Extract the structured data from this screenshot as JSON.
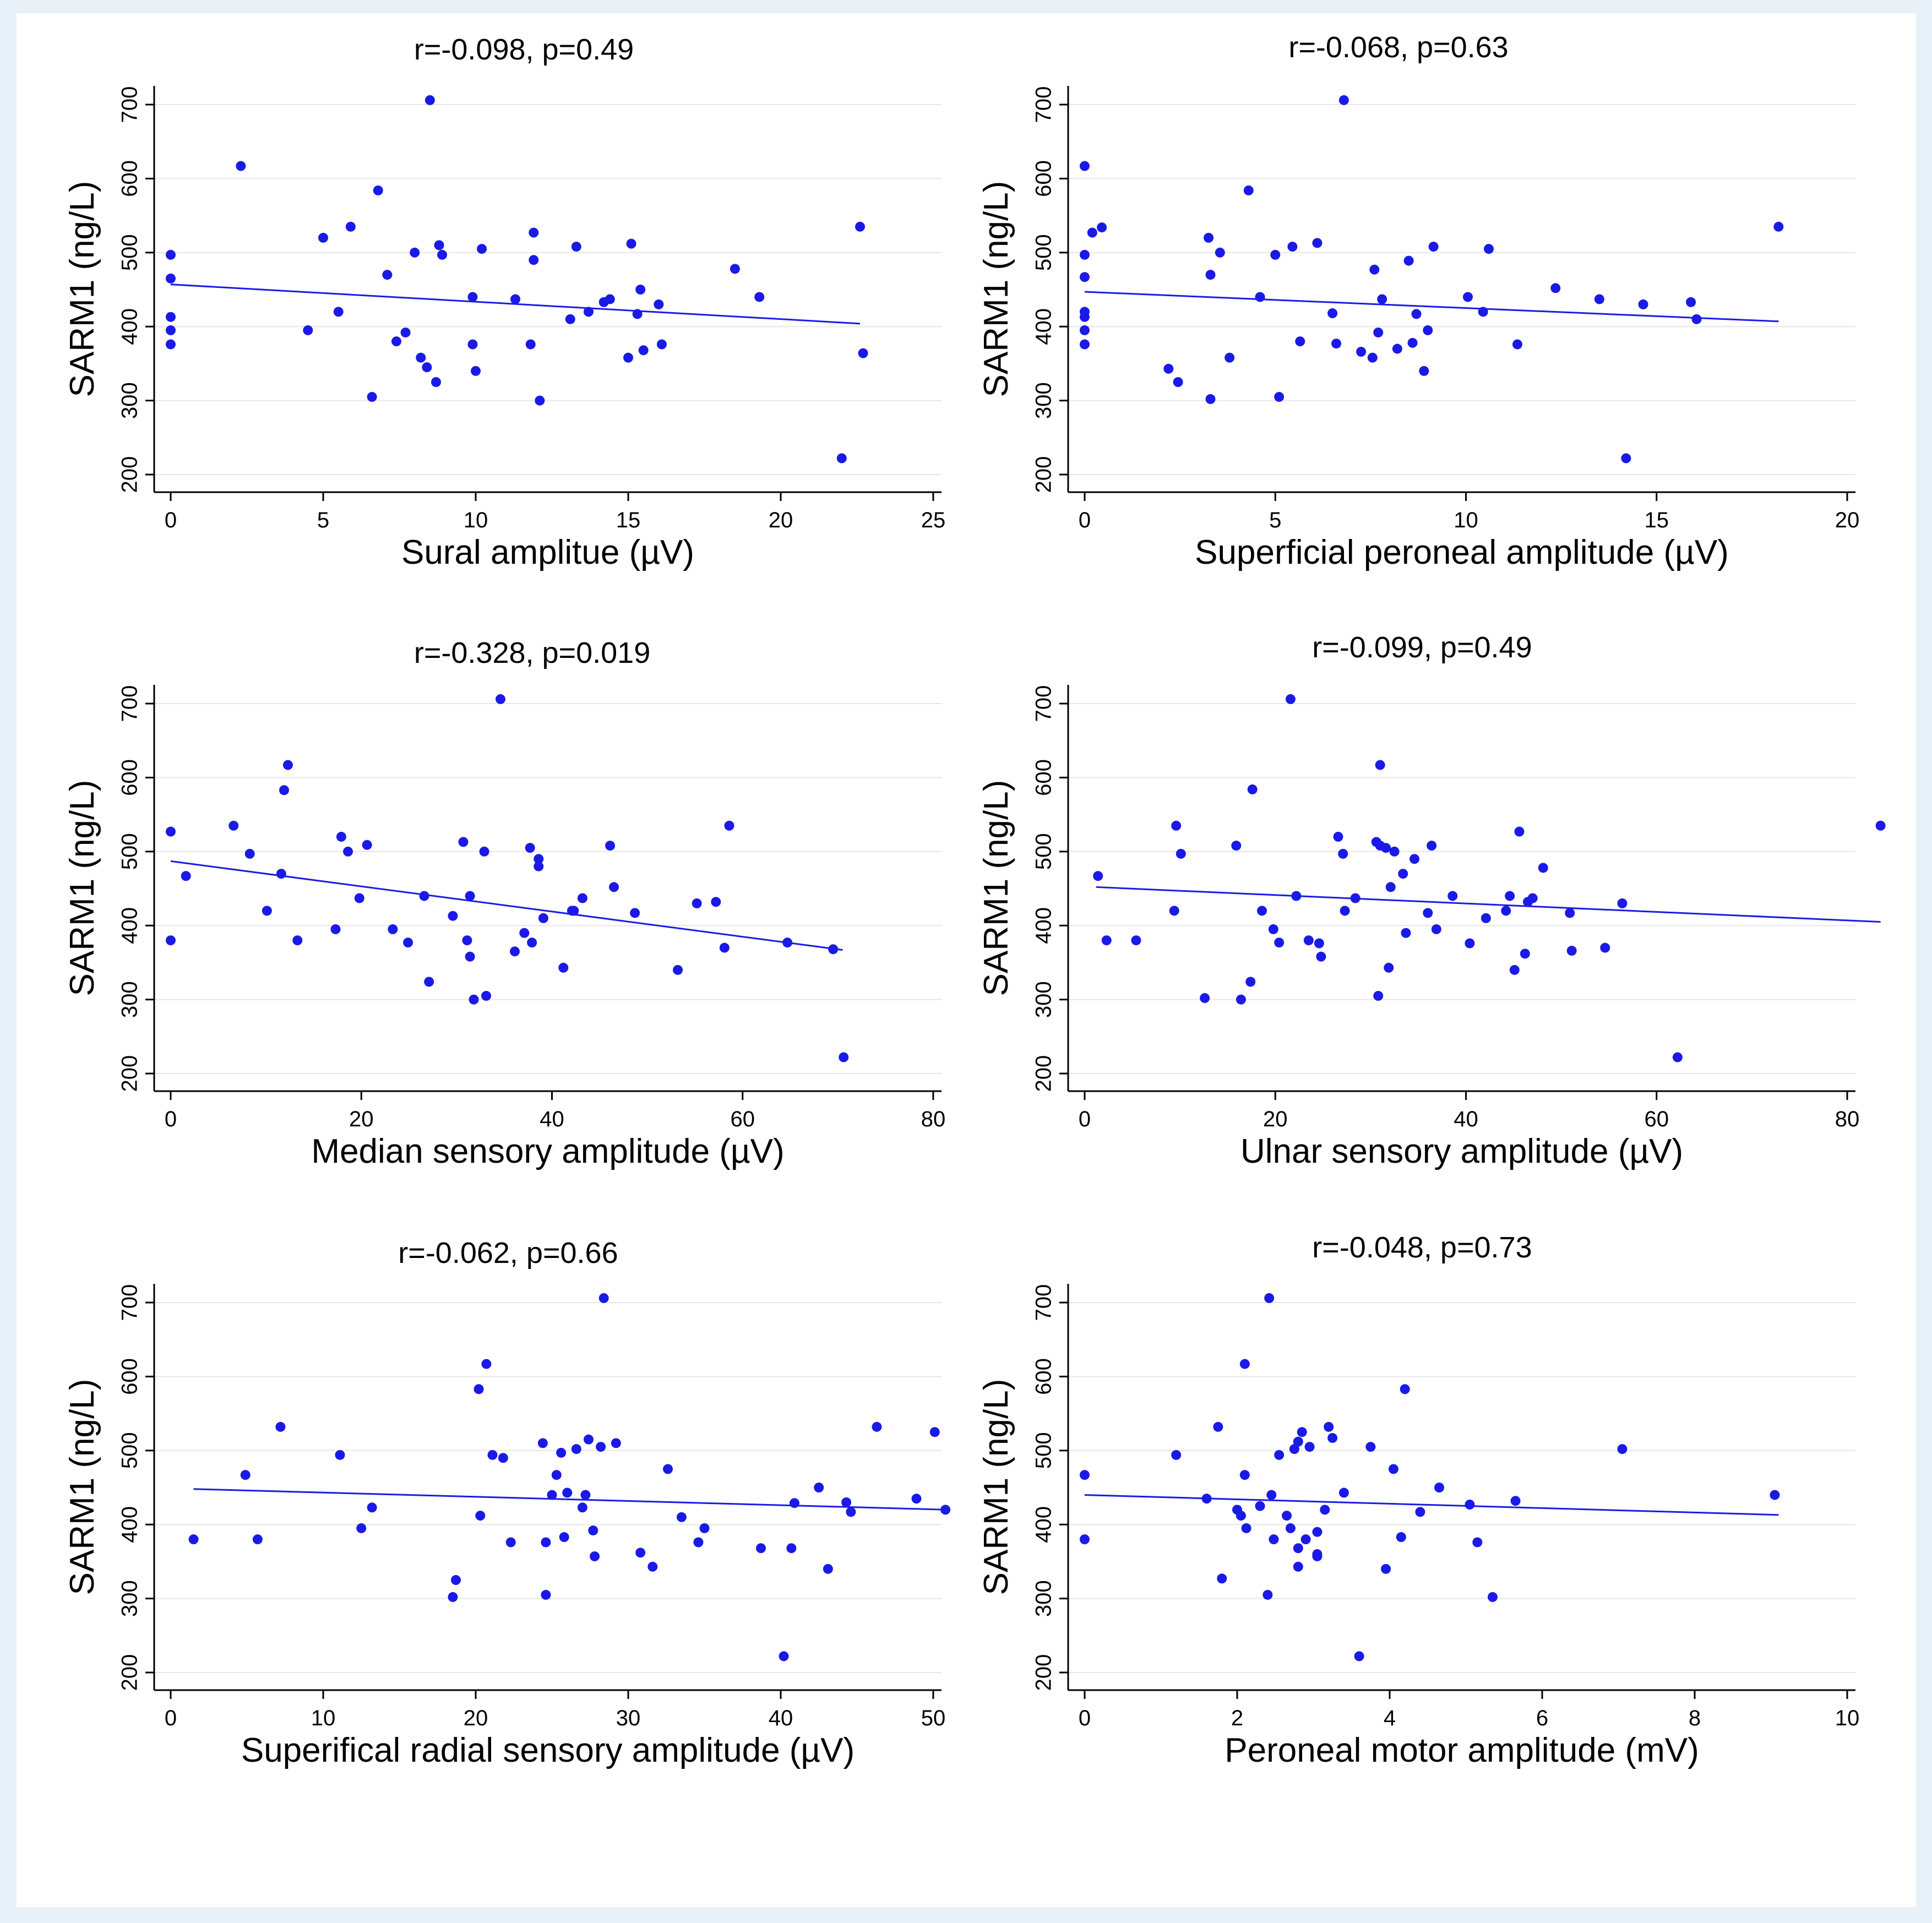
{
  "colors": {
    "point": "#1a1ae6",
    "line": "#1a1ae6",
    "axis": "#000000",
    "grid": "#e6e6e6"
  },
  "chart_data": [
    {
      "type": "scatter",
      "title": "",
      "annotation": "r=-0.098, p=0.49",
      "xlabel": "Sural amplitue (µV)",
      "ylabel": "SARM1 (ng/L)",
      "xlim": [
        0,
        25
      ],
      "ylim": [
        200,
        700
      ],
      "xticks": [
        0,
        5,
        10,
        15,
        20,
        25
      ],
      "yticks": [
        200,
        300,
        400,
        500,
        600,
        700
      ],
      "fit_line": {
        "x": [
          0,
          22.6
        ],
        "y": [
          457,
          404
        ]
      },
      "points": [
        [
          0,
          497
        ],
        [
          0,
          465
        ],
        [
          0,
          413
        ],
        [
          0,
          395
        ],
        [
          0,
          376
        ],
        [
          2.3,
          617
        ],
        [
          4.5,
          395
        ],
        [
          5.0,
          520
        ],
        [
          5.5,
          420
        ],
        [
          5.9,
          535
        ],
        [
          6.6,
          305
        ],
        [
          6.8,
          584
        ],
        [
          7.1,
          470
        ],
        [
          7.4,
          380
        ],
        [
          7.7,
          392
        ],
        [
          8.0,
          500
        ],
        [
          8.2,
          358
        ],
        [
          8.4,
          345
        ],
        [
          8.5,
          706
        ],
        [
          8.7,
          325
        ],
        [
          8.8,
          510
        ],
        [
          8.9,
          497
        ],
        [
          9.9,
          440
        ],
        [
          9.9,
          376
        ],
        [
          10.0,
          340
        ],
        [
          10.2,
          505
        ],
        [
          11.3,
          437
        ],
        [
          11.8,
          376
        ],
        [
          11.9,
          490
        ],
        [
          11.9,
          527
        ],
        [
          12.1,
          300
        ],
        [
          13.1,
          410
        ],
        [
          13.3,
          508
        ],
        [
          13.7,
          420
        ],
        [
          14.2,
          433
        ],
        [
          14.4,
          437
        ],
        [
          15.0,
          358
        ],
        [
          15.1,
          512
        ],
        [
          15.3,
          417
        ],
        [
          15.4,
          450
        ],
        [
          15.5,
          368
        ],
        [
          16.0,
          430
        ],
        [
          16.1,
          376
        ],
        [
          18.5,
          478
        ],
        [
          19.3,
          440
        ],
        [
          22.0,
          222
        ],
        [
          22.6,
          535
        ],
        [
          22.7,
          364
        ]
      ]
    },
    {
      "type": "scatter",
      "title": "",
      "annotation": "r=-0.068, p=0.63",
      "xlabel": "Superficial peroneal amplitude (µV)",
      "ylabel": "SARM1 (ng/L)",
      "xlim": [
        0,
        20
      ],
      "ylim": [
        200,
        700
      ],
      "xticks": [
        0,
        5,
        10,
        15,
        20
      ],
      "yticks": [
        200,
        300,
        400,
        500,
        600,
        700
      ],
      "fit_line": {
        "x": [
          0,
          18.2
        ],
        "y": [
          447,
          407
        ]
      },
      "points": [
        [
          0,
          617
        ],
        [
          0,
          497
        ],
        [
          0,
          467
        ],
        [
          0,
          420
        ],
        [
          0,
          413
        ],
        [
          0,
          395
        ],
        [
          0,
          376
        ],
        [
          0.2,
          527
        ],
        [
          0.45,
          534
        ],
        [
          2.2,
          343
        ],
        [
          2.45,
          325
        ],
        [
          3.25,
          520
        ],
        [
          3.3,
          470
        ],
        [
          3.3,
          302
        ],
        [
          3.55,
          500
        ],
        [
          3.8,
          358
        ],
        [
          4.3,
          584
        ],
        [
          4.6,
          440
        ],
        [
          5.0,
          497
        ],
        [
          5.1,
          305
        ],
        [
          5.45,
          508
        ],
        [
          5.65,
          380
        ],
        [
          6.1,
          513
        ],
        [
          6.5,
          418
        ],
        [
          6.6,
          377
        ],
        [
          6.8,
          706
        ],
        [
          7.25,
          366
        ],
        [
          7.55,
          358
        ],
        [
          7.6,
          477
        ],
        [
          7.7,
          392
        ],
        [
          7.8,
          437
        ],
        [
          8.2,
          370
        ],
        [
          8.5,
          489
        ],
        [
          8.6,
          378
        ],
        [
          8.7,
          417
        ],
        [
          8.9,
          340
        ],
        [
          9.0,
          395
        ],
        [
          9.15,
          508
        ],
        [
          10.05,
          440
        ],
        [
          10.45,
          420
        ],
        [
          10.6,
          505
        ],
        [
          11.35,
          376
        ],
        [
          12.35,
          452
        ],
        [
          13.5,
          437
        ],
        [
          14.2,
          222
        ],
        [
          14.65,
          430
        ],
        [
          15.9,
          433
        ],
        [
          16.05,
          410
        ],
        [
          18.2,
          535
        ]
      ]
    },
    {
      "type": "scatter",
      "title": "",
      "annotation": "r=-0.328, p=0.019",
      "xlabel": "Median sensory amplitude (µV)",
      "ylabel": "SARM1 (ng/L)",
      "xlim": [
        0,
        80
      ],
      "ylim": [
        200,
        700
      ],
      "xticks": [
        0,
        20,
        40,
        60,
        80
      ],
      "yticks": [
        200,
        300,
        400,
        500,
        600,
        700
      ],
      "fit_line": {
        "x": [
          0,
          70.5
        ],
        "y": [
          487,
          367
        ]
      },
      "points": [
        [
          0,
          527
        ],
        [
          0,
          380
        ],
        [
          1.6,
          467
        ],
        [
          6.6,
          535
        ],
        [
          8.3,
          497
        ],
        [
          10.1,
          420
        ],
        [
          11.6,
          470
        ],
        [
          11.9,
          583
        ],
        [
          12.3,
          617
        ],
        [
          13.3,
          380
        ],
        [
          17.3,
          395
        ],
        [
          17.9,
          520
        ],
        [
          18.6,
          500
        ],
        [
          19.8,
          437
        ],
        [
          20.6,
          509
        ],
        [
          23.3,
          395
        ],
        [
          24.9,
          377
        ],
        [
          26.6,
          440
        ],
        [
          27.1,
          324
        ],
        [
          29.6,
          413
        ],
        [
          30.7,
          513
        ],
        [
          31.1,
          380
        ],
        [
          31.4,
          440
        ],
        [
          31.4,
          358
        ],
        [
          31.8,
          300
        ],
        [
          32.9,
          500
        ],
        [
          33.1,
          305
        ],
        [
          34.6,
          706
        ],
        [
          36.1,
          365
        ],
        [
          37.1,
          390
        ],
        [
          37.7,
          505
        ],
        [
          37.9,
          377
        ],
        [
          38.6,
          480
        ],
        [
          38.6,
          490
        ],
        [
          39.1,
          410
        ],
        [
          41.2,
          343
        ],
        [
          42.1,
          420
        ],
        [
          42.3,
          420
        ],
        [
          43.2,
          437
        ],
        [
          46.1,
          508
        ],
        [
          46.5,
          452
        ],
        [
          48.7,
          417
        ],
        [
          53.2,
          340
        ],
        [
          55.2,
          430
        ],
        [
          57.2,
          432
        ],
        [
          58.1,
          370
        ],
        [
          58.6,
          535
        ],
        [
          64.7,
          377
        ],
        [
          69.5,
          368
        ],
        [
          70.6,
          222
        ]
      ]
    },
    {
      "type": "scatter",
      "title": "",
      "annotation": "r=-0.099, p=0.49",
      "xlabel": "Ulnar sensory amplitude (µV)",
      "ylabel": "SARM1 (ng/L)",
      "xlim": [
        0,
        80
      ],
      "ylim": [
        200,
        700
      ],
      "xticks": [
        0,
        20,
        40,
        60,
        80
      ],
      "yticks": [
        200,
        300,
        400,
        500,
        600,
        700
      ],
      "fit_line": {
        "x": [
          1.2,
          83.5
        ],
        "y": [
          452,
          405
        ]
      },
      "points": [
        [
          1.4,
          467
        ],
        [
          2.3,
          380
        ],
        [
          5.4,
          380
        ],
        [
          9.4,
          420
        ],
        [
          9.6,
          535
        ],
        [
          10.1,
          497
        ],
        [
          12.6,
          302
        ],
        [
          15.9,
          508
        ],
        [
          16.4,
          300
        ],
        [
          17.4,
          324
        ],
        [
          17.6,
          584
        ],
        [
          18.6,
          420
        ],
        [
          19.8,
          395
        ],
        [
          20.4,
          377
        ],
        [
          21.6,
          706
        ],
        [
          22.2,
          440
        ],
        [
          23.5,
          380
        ],
        [
          24.6,
          376
        ],
        [
          24.8,
          358
        ],
        [
          26.6,
          520
        ],
        [
          27.1,
          497
        ],
        [
          27.3,
          420
        ],
        [
          28.4,
          437
        ],
        [
          30.6,
          513
        ],
        [
          30.8,
          305
        ],
        [
          31.0,
          508
        ],
        [
          31.0,
          617
        ],
        [
          31.6,
          505
        ],
        [
          31.9,
          343
        ],
        [
          32.1,
          452
        ],
        [
          32.5,
          500
        ],
        [
          33.4,
          470
        ],
        [
          33.7,
          390
        ],
        [
          34.6,
          490
        ],
        [
          36.0,
          417
        ],
        [
          36.4,
          508
        ],
        [
          36.9,
          395
        ],
        [
          38.6,
          440
        ],
        [
          40.4,
          376
        ],
        [
          42.1,
          410
        ],
        [
          44.2,
          420
        ],
        [
          44.6,
          440
        ],
        [
          45.1,
          340
        ],
        [
          45.6,
          527
        ],
        [
          46.2,
          362
        ],
        [
          46.5,
          432
        ],
        [
          47.0,
          437
        ],
        [
          48.1,
          478
        ],
        [
          50.9,
          417
        ],
        [
          51.1,
          366
        ],
        [
          54.6,
          370
        ],
        [
          56.4,
          430
        ],
        [
          62.2,
          222
        ],
        [
          83.5,
          535
        ]
      ]
    },
    {
      "type": "scatter",
      "title": "",
      "annotation": "r=-0.062, p=0.66",
      "xlabel": "Superifical radial sensory amplitude (µV)",
      "ylabel": "SARM1 (ng/L)",
      "xlim": [
        0,
        50
      ],
      "ylim": [
        200,
        700
      ],
      "xticks": [
        0,
        10,
        20,
        30,
        40,
        50
      ],
      "yticks": [
        200,
        300,
        400,
        500,
        600,
        700
      ],
      "fit_line": {
        "x": [
          1.5,
          50.9
        ],
        "y": [
          448,
          420
        ]
      },
      "points": [
        [
          1.5,
          380
        ],
        [
          4.9,
          467
        ],
        [
          5.7,
          380
        ],
        [
          7.2,
          532
        ],
        [
          11.1,
          494
        ],
        [
          12.5,
          395
        ],
        [
          13.2,
          423
        ],
        [
          18.5,
          302
        ],
        [
          18.7,
          325
        ],
        [
          20.2,
          583
        ],
        [
          20.3,
          412
        ],
        [
          20.7,
          617
        ],
        [
          21.1,
          494
        ],
        [
          21.8,
          490
        ],
        [
          22.3,
          376
        ],
        [
          24.4,
          510
        ],
        [
          24.6,
          305
        ],
        [
          24.6,
          376
        ],
        [
          25.0,
          440
        ],
        [
          25.3,
          467
        ],
        [
          25.6,
          497
        ],
        [
          25.8,
          383
        ],
        [
          26.0,
          443
        ],
        [
          26.6,
          502
        ],
        [
          27.0,
          423
        ],
        [
          27.2,
          440
        ],
        [
          27.4,
          515
        ],
        [
          27.7,
          392
        ],
        [
          27.8,
          357
        ],
        [
          28.2,
          505
        ],
        [
          28.4,
          706
        ],
        [
          29.2,
          510
        ],
        [
          30.8,
          362
        ],
        [
          31.6,
          343
        ],
        [
          32.6,
          475
        ],
        [
          33.5,
          410
        ],
        [
          34.6,
          376
        ],
        [
          35.0,
          395
        ],
        [
          38.7,
          368
        ],
        [
          40.2,
          222
        ],
        [
          40.7,
          368
        ],
        [
          40.9,
          429
        ],
        [
          42.5,
          450
        ],
        [
          43.1,
          340
        ],
        [
          44.3,
          430
        ],
        [
          44.6,
          417
        ],
        [
          46.3,
          532
        ],
        [
          48.9,
          435
        ],
        [
          50.1,
          525
        ],
        [
          50.8,
          420
        ]
      ]
    },
    {
      "type": "scatter",
      "title": "",
      "annotation": "r=-0.048, p=0.73",
      "xlabel": "Peroneal motor amplitude (mV)",
      "ylabel": "SARM1 (ng/L)",
      "xlim": [
        0,
        10
      ],
      "ylim": [
        200,
        700
      ],
      "xticks": [
        0,
        2,
        4,
        6,
        8,
        10
      ],
      "yticks": [
        200,
        300,
        400,
        500,
        600,
        700
      ],
      "fit_line": {
        "x": [
          0,
          9.1
        ],
        "y": [
          440,
          413
        ]
      },
      "points": [
        [
          0,
          467
        ],
        [
          0,
          380
        ],
        [
          1.2,
          494
        ],
        [
          1.6,
          435
        ],
        [
          1.75,
          532
        ],
        [
          1.8,
          327
        ],
        [
          2.0,
          420
        ],
        [
          2.05,
          412
        ],
        [
          2.1,
          617
        ],
        [
          2.1,
          467
        ],
        [
          2.12,
          395
        ],
        [
          2.3,
          425
        ],
        [
          2.4,
          305
        ],
        [
          2.42,
          706
        ],
        [
          2.45,
          440
        ],
        [
          2.48,
          380
        ],
        [
          2.55,
          494
        ],
        [
          2.65,
          412
        ],
        [
          2.7,
          395
        ],
        [
          2.75,
          502
        ],
        [
          2.8,
          368
        ],
        [
          2.8,
          343
        ],
        [
          2.8,
          512
        ],
        [
          2.85,
          525
        ],
        [
          2.9,
          380
        ],
        [
          2.95,
          505
        ],
        [
          3.05,
          360
        ],
        [
          3.05,
          357
        ],
        [
          3.05,
          390
        ],
        [
          3.15,
          420
        ],
        [
          3.2,
          532
        ],
        [
          3.25,
          517
        ],
        [
          3.4,
          443
        ],
        [
          3.6,
          222
        ],
        [
          3.75,
          505
        ],
        [
          3.95,
          340
        ],
        [
          4.05,
          475
        ],
        [
          4.15,
          383
        ],
        [
          4.2,
          583
        ],
        [
          4.4,
          417
        ],
        [
          4.65,
          450
        ],
        [
          5.05,
          427
        ],
        [
          5.15,
          376
        ],
        [
          5.35,
          302
        ],
        [
          5.65,
          432
        ],
        [
          7.05,
          502
        ],
        [
          9.05,
          440
        ]
      ]
    }
  ]
}
